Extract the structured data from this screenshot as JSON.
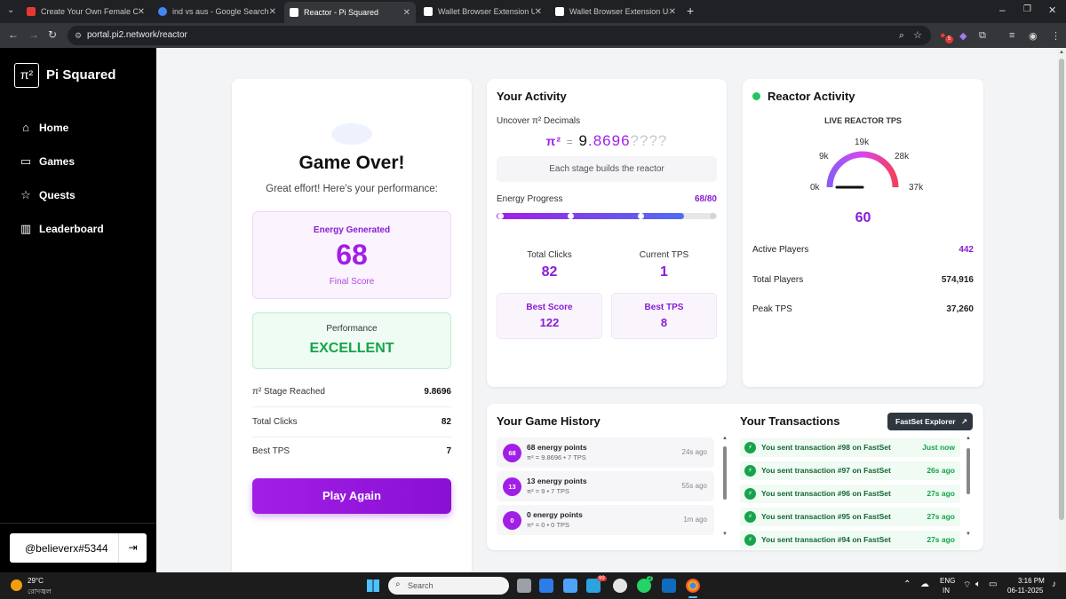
{
  "browser": {
    "tabs": [
      {
        "title": "Create Your Own Female Carto",
        "color": "#e53935"
      },
      {
        "title": "ind vs aus - Google Search",
        "color": "#4285f4"
      },
      {
        "title": "Reactor - Pi Squared",
        "color": "#ffffff"
      },
      {
        "title": "Wallet Browser Extension Usag",
        "color": "#ffffff"
      },
      {
        "title": "Wallet Browser Extension Usag",
        "color": "#ffffff"
      }
    ],
    "url": "portal.pi2.network/reactor",
    "extension_badge": "5"
  },
  "sidebar": {
    "logo_symbol": "π²",
    "brand": "Pi Squared",
    "items": [
      {
        "label": "Home",
        "icon": "home-icon"
      },
      {
        "label": "Games",
        "icon": "gamepad-icon"
      },
      {
        "label": "Quests",
        "icon": "star-icon"
      },
      {
        "label": "Leaderboard",
        "icon": "chart-icon"
      }
    ],
    "username": "@believerx#5344"
  },
  "game_over": {
    "title": "Game Over!",
    "subtitle": "Great effort! Here's your performance:",
    "energy_label": "Energy Generated",
    "energy_value": "68",
    "energy_caption": "Final Score",
    "performance_label": "Performance",
    "performance_value": "EXCELLENT",
    "stats": [
      {
        "label": "π² Stage Reached",
        "value": "9.8696"
      },
      {
        "label": "Total Clicks",
        "value": "82"
      },
      {
        "label": "Best TPS",
        "value": "7"
      }
    ],
    "play_again": "Play Again"
  },
  "activity": {
    "title": "Your Activity",
    "uncover_label": "Uncover π² Decimals",
    "pi_prefix": "π²",
    "pi_equals": "=",
    "pi_int": "9",
    "pi_dot": ".",
    "pi_digits": "8696",
    "pi_hidden": "????",
    "stage_note": "Each stage builds the reactor",
    "energy_label": "Energy Progress",
    "energy_value": "68/80",
    "energy_progress": 0.85,
    "total_clicks_label": "Total Clicks",
    "total_clicks": "82",
    "current_tps_label": "Current TPS",
    "current_tps": "1",
    "best_score_label": "Best Score",
    "best_score": "122",
    "best_tps_label": "Best TPS",
    "best_tps": "8"
  },
  "reactor": {
    "title": "Reactor Activity",
    "live_label": "LIVE REACTOR TPS",
    "gauge_ticks": [
      "0k",
      "9k",
      "19k",
      "28k",
      "37k"
    ],
    "gauge_value": "60",
    "rows": [
      {
        "label": "Active Players",
        "value": "442",
        "accent": true
      },
      {
        "label": "Total Players",
        "value": "574,916",
        "accent": false
      },
      {
        "label": "Peak TPS",
        "value": "37,260",
        "accent": false
      }
    ]
  },
  "history": {
    "title": "Your Game History",
    "items": [
      {
        "badge": "68",
        "title": "68 energy points",
        "detail": "π² = 9.8696 • 7 TPS",
        "time": "24s ago"
      },
      {
        "badge": "13",
        "title": "13 energy points",
        "detail": "π² = 9 • 7 TPS",
        "time": "55s ago"
      },
      {
        "badge": "0",
        "title": "0 energy points",
        "detail": "π² = 0 • 0 TPS",
        "time": "1m ago"
      }
    ]
  },
  "transactions": {
    "title": "Your Transactions",
    "explorer_button": "FastSet Explorer",
    "items": [
      {
        "text": "You sent transaction #98 on FastSet",
        "time": "Just now"
      },
      {
        "text": "You sent transaction #97 on FastSet",
        "time": "26s ago"
      },
      {
        "text": "You sent transaction #96 on FastSet",
        "time": "27s ago"
      },
      {
        "text": "You sent transaction #95 on FastSet",
        "time": "27s ago"
      },
      {
        "text": "You sent transaction #94 on FastSet",
        "time": "27s ago"
      }
    ]
  },
  "taskbar": {
    "temperature": "29°C",
    "weather_text": "রোদজ্বল",
    "search_placeholder": "Search",
    "lang_top": "ENG",
    "lang_bottom": "IN",
    "time": "3:16 PM",
    "date": "06-11-2025",
    "telegram_badge": "99",
    "whatsapp_badge": "2"
  }
}
